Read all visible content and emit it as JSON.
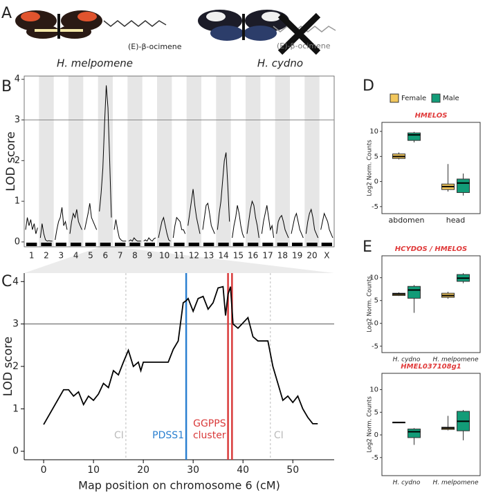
{
  "panel_labels": [
    "A",
    "B",
    "C",
    "D",
    "E"
  ],
  "panel_a": {
    "compound_labels": [
      "(E)-β-ocimene",
      "(E)-β-ocimene"
    ],
    "species": [
      "H. melpomene",
      "H. cydno"
    ]
  },
  "chart_data": [
    {
      "type": "chromline",
      "y_label": "LOD score",
      "ylim": [
        -0.12,
        4.08
      ],
      "yticks": [
        0,
        1,
        2,
        3,
        4
      ],
      "threshold": 3,
      "color": "#000000",
      "band_color": "#e6e6e6",
      "series": [
        {
          "name": "1",
          "values": [
            0.3,
            0.6,
            0.4,
            0.55,
            0.3,
            0.45,
            0.2,
            0.35
          ]
        },
        {
          "name": "2",
          "values": [
            0.1,
            0.45,
            0.2,
            0.05,
            0.02,
            0.03,
            0.02,
            0.02
          ]
        },
        {
          "name": "3",
          "values": [
            0.05,
            0.3,
            0.5,
            0.6,
            0.85,
            0.4,
            0.5,
            0.3
          ]
        },
        {
          "name": "4",
          "values": [
            0.2,
            0.5,
            0.7,
            0.6,
            0.8,
            0.5,
            0.4,
            0.3
          ]
        },
        {
          "name": "5",
          "values": [
            0.3,
            0.5,
            0.7,
            0.95,
            0.6,
            0.5,
            0.4,
            0.3
          ]
        },
        {
          "name": "6",
          "values": [
            0.75,
            1.2,
            1.8,
            2.9,
            3.85,
            3.3,
            2.0,
            0.6
          ]
        },
        {
          "name": "7",
          "values": [
            0.3,
            0.55,
            0.3,
            0.1,
            0.05,
            0.02,
            0.02,
            0.02
          ]
        },
        {
          "name": "8",
          "values": [
            0.02,
            0.05,
            0.02,
            0.1,
            0.05,
            0.02,
            0.02,
            0.02
          ]
        },
        {
          "name": "9",
          "values": [
            0.02,
            0.05,
            0.02,
            0.1,
            0.05,
            0.02,
            0.08,
            0.1
          ]
        },
        {
          "name": "10",
          "values": [
            0.1,
            0.3,
            0.5,
            0.6,
            0.4,
            0.2,
            0.05,
            0.02
          ]
        },
        {
          "name": "11",
          "values": [
            0.1,
            0.4,
            0.6,
            0.55,
            0.5,
            0.3,
            0.3,
            0.2
          ]
        },
        {
          "name": "12",
          "values": [
            0.4,
            0.7,
            1.0,
            1.3,
            0.9,
            0.6,
            0.4,
            0.2
          ]
        },
        {
          "name": "13",
          "values": [
            0.3,
            0.6,
            0.9,
            0.95,
            0.7,
            0.4,
            0.3,
            0.2
          ]
        },
        {
          "name": "14",
          "values": [
            0.3,
            0.7,
            1.0,
            1.5,
            2.0,
            2.2,
            1.4,
            0.5
          ]
        },
        {
          "name": "15",
          "values": [
            0.1,
            0.4,
            0.6,
            0.9,
            0.7,
            0.4,
            0.2,
            0.1
          ]
        },
        {
          "name": "16",
          "values": [
            0.2,
            0.5,
            0.8,
            1.0,
            0.9,
            0.6,
            0.4,
            0.1
          ]
        },
        {
          "name": "17",
          "values": [
            0.2,
            0.5,
            0.7,
            0.9,
            0.6,
            0.3,
            0.4,
            0.1
          ]
        },
        {
          "name": "18",
          "values": [
            0.2,
            0.5,
            0.6,
            0.65,
            0.5,
            0.3,
            0.2,
            0.1
          ]
        },
        {
          "name": "19",
          "values": [
            0.2,
            0.4,
            0.6,
            0.7,
            0.5,
            0.3,
            0.2,
            0.1
          ]
        },
        {
          "name": "20",
          "values": [
            0.2,
            0.5,
            0.7,
            0.8,
            0.6,
            0.3,
            0.2,
            0.1
          ]
        },
        {
          "name": "X",
          "values": [
            0.3,
            0.5,
            0.7,
            0.6,
            0.5,
            0.3,
            0.2,
            0.1
          ]
        }
      ]
    },
    {
      "type": "line",
      "x_label": "Map position on chromosome 6 (cM)",
      "y_label": "LOD score",
      "xlim": [
        -3.9,
        58.3
      ],
      "xticks": [
        0,
        10,
        20,
        30,
        40,
        50
      ],
      "ylim": [
        -0.2,
        4.2
      ],
      "yticks": [
        0,
        1,
        2,
        3,
        4
      ],
      "threshold": 3,
      "color": "#000000",
      "x": [
        0,
        4,
        5,
        6,
        7,
        8,
        9,
        10,
        11,
        12,
        13,
        14,
        15,
        16,
        17,
        18,
        19,
        19.5,
        20,
        22,
        25,
        26,
        27,
        28,
        28.6,
        29,
        30,
        31,
        32,
        33,
        34,
        35,
        36,
        36.5,
        37,
        37.5,
        38,
        39,
        41,
        42,
        43,
        45,
        46,
        47,
        48,
        49,
        50,
        51,
        52,
        53,
        54,
        55
      ],
      "values": [
        0.63,
        1.45,
        1.45,
        1.3,
        1.4,
        1.1,
        1.3,
        1.2,
        1.35,
        1.6,
        1.5,
        1.9,
        1.8,
        2.1,
        2.38,
        2.0,
        2.1,
        1.9,
        2.1,
        2.1,
        2.1,
        2.4,
        2.6,
        3.5,
        3.55,
        3.6,
        3.3,
        3.6,
        3.65,
        3.35,
        3.5,
        3.85,
        3.88,
        3.2,
        3.7,
        3.88,
        3.0,
        2.9,
        3.15,
        2.7,
        2.6,
        2.6,
        2.0,
        1.6,
        1.2,
        1.3,
        1.15,
        1.3,
        1.0,
        0.8,
        0.65,
        0.65
      ],
      "interval": {
        "label": "CI",
        "x": [
          16.5,
          45.5
        ],
        "color": "#bbbbbb"
      },
      "genes": [
        {
          "label_lines": [
            "PDSS1"
          ],
          "x": [
            28.6
          ],
          "color": "#2a7fd0"
        },
        {
          "label_lines": [
            "GGPPS",
            "cluster"
          ],
          "x": [
            37.0,
            37.8
          ],
          "color": "#d93a3a"
        }
      ]
    },
    {
      "type": "box",
      "title": "HMELOS",
      "y_label": "Log2 Norm. Counts",
      "categories": [
        "abdomen",
        "head"
      ],
      "ylim": [
        -6.4,
        11.8
      ],
      "yticks": [
        -5,
        0,
        5,
        10
      ],
      "legend": "top",
      "series": [
        {
          "name": "Female",
          "color": "#f2c75c",
          "boxes": [
            {
              "min": 4.4,
              "q1": 4.6,
              "median": 5.0,
              "q3": 5.5,
              "max": 5.8
            },
            {
              "min": -2.0,
              "q1": -1.6,
              "median": -1.0,
              "q3": -0.5,
              "max": 3.5
            }
          ]
        },
        {
          "name": "Male",
          "color": "#129c78",
          "boxes": [
            {
              "min": 7.8,
              "q1": 8.2,
              "median": 9.3,
              "q3": 9.7,
              "max": 9.9
            },
            {
              "min": -2.8,
              "q1": -2.2,
              "median": -0.3,
              "q3": 0.5,
              "max": 1.6
            }
          ]
        }
      ]
    },
    {
      "type": "box",
      "title": "HCYDOS / HMELOS",
      "y_label": "Log2 Norm. Counts",
      "categories": [
        "H. cydno",
        "H. melpomene"
      ],
      "ylim": [
        -6.4,
        14.8
      ],
      "yticks": [
        -5,
        0,
        5,
        10
      ],
      "series": [
        {
          "color": "#f2c75c",
          "boxes": [
            {
              "min": 6.0,
              "q1": 6.1,
              "median": 6.4,
              "q3": 6.6,
              "max": 6.8
            },
            {
              "min": 5.4,
              "q1": 5.7,
              "median": 6.1,
              "q3": 6.6,
              "max": 6.9
            }
          ]
        },
        {
          "color": "#129c78",
          "boxes": [
            {
              "min": 2.3,
              "q1": 5.5,
              "median": 7.3,
              "q3": 8.1,
              "max": 8.4
            },
            {
              "min": 8.8,
              "q1": 9.2,
              "median": 9.9,
              "q3": 10.7,
              "max": 11.0
            }
          ]
        }
      ]
    },
    {
      "type": "box",
      "title": "HMEL037108g1",
      "y_label": "Log2 Norm. Counts",
      "categories": [
        "H. cydno",
        "H. melpomene"
      ],
      "ylim": [
        -9.0,
        13.6
      ],
      "yticks": [
        -5,
        0,
        5,
        10
      ],
      "series": [
        {
          "color": "#f2c75c",
          "boxes": [
            {
              "min": 2.7,
              "q1": 2.7,
              "median": 2.75,
              "q3": 2.8,
              "max": 2.8
            },
            {
              "min": 1.0,
              "q1": 1.2,
              "median": 1.5,
              "q3": 1.7,
              "max": 4.2
            }
          ]
        },
        {
          "color": "#129c78",
          "boxes": [
            {
              "min": -2.2,
              "q1": -0.6,
              "median": 0.7,
              "q3": 1.3,
              "max": 1.5
            },
            {
              "min": -1.2,
              "q1": 0.9,
              "median": 3.0,
              "q3": 5.2,
              "max": 5.5
            }
          ]
        }
      ]
    }
  ]
}
